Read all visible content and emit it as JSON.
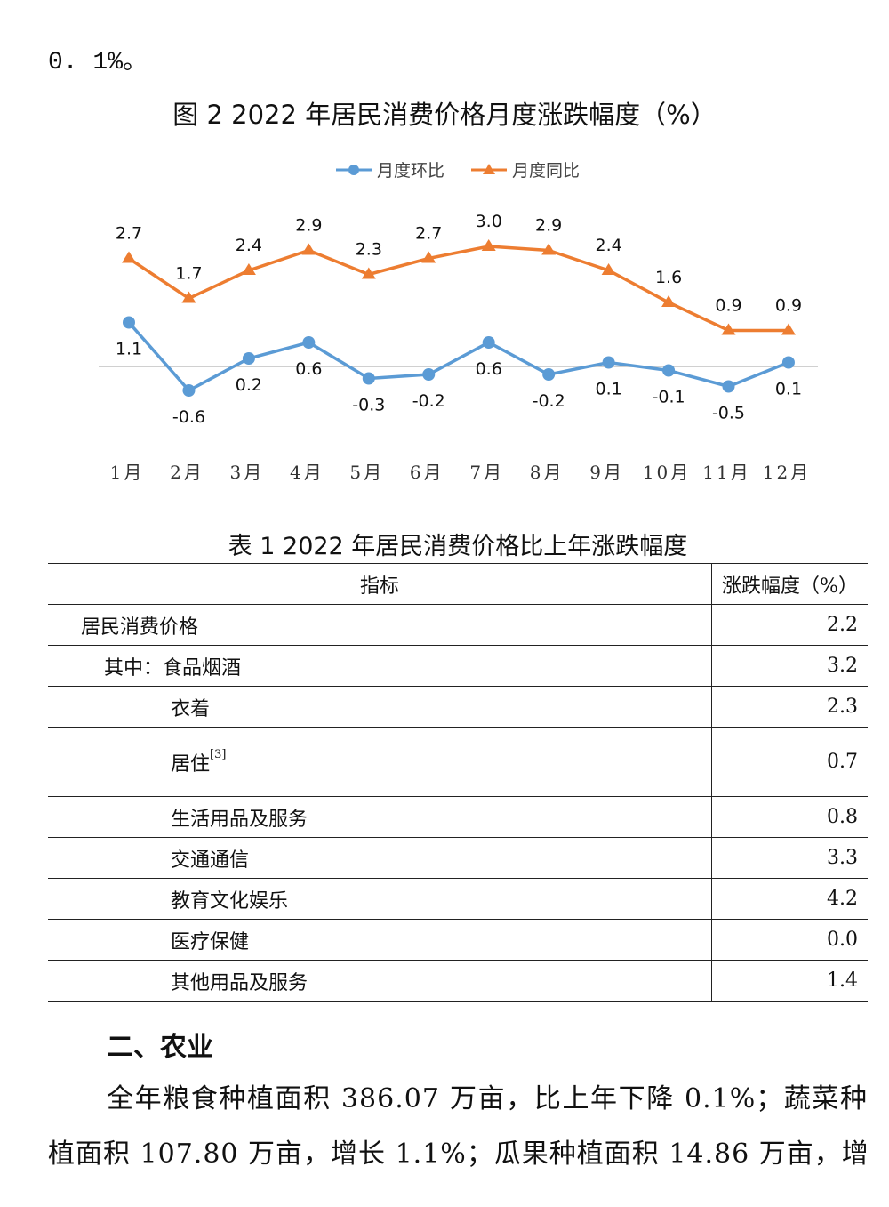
{
  "top_text": "0. 1%。",
  "chart_data": {
    "type": "line",
    "title": "图 2  2022 年居民消费价格月度涨跌幅度（%）",
    "categories": [
      "1月",
      "2月",
      "3月",
      "4月",
      "5月",
      "6月",
      "7月",
      "8月",
      "9月",
      "10月",
      "11月",
      "12月"
    ],
    "series": [
      {
        "name": "月度环比",
        "color": "#5b9bd5",
        "marker": "circle",
        "values": [
          1.1,
          -0.6,
          0.2,
          0.6,
          -0.3,
          -0.2,
          0.6,
          -0.2,
          0.1,
          -0.1,
          -0.5,
          0.1
        ]
      },
      {
        "name": "月度同比",
        "color": "#ed7d31",
        "marker": "triangle",
        "values": [
          2.7,
          1.7,
          2.4,
          2.9,
          2.3,
          2.7,
          3.0,
          2.9,
          2.4,
          1.6,
          0.9,
          0.9
        ]
      }
    ],
    "legend": "top-center",
    "xlabel": "",
    "ylabel": "",
    "grid": false
  },
  "table": {
    "title": "表 1  2022 年居民消费价格比上年涨跌幅度",
    "headers": [
      "指标",
      "涨跌幅度（%）"
    ],
    "rows": [
      {
        "label": "居民消费价格",
        "value": "2.2"
      },
      {
        "label": "其中：食品烟酒",
        "value": "3.2"
      },
      {
        "label": "衣着",
        "value": "2.3"
      },
      {
        "label": "居住",
        "note": "[3]",
        "value": "0.7"
      },
      {
        "label": "生活用品及服务",
        "value": "0.8"
      },
      {
        "label": "交通通信",
        "value": "3.3"
      },
      {
        "label": "教育文化娱乐",
        "value": "4.2"
      },
      {
        "label": "医疗保健",
        "value": "0.0"
      },
      {
        "label": "其他用品及服务",
        "value": "1.4"
      }
    ]
  },
  "section_heading": "二、农业",
  "paragraph_lines": [
    "全年粮食种植面积 386.07 万亩，比上年下降 0.1%；蔬菜种",
    "植面积 107.80 万亩，增长 1.1%；瓜果种植面积 14.86 万亩，增"
  ]
}
